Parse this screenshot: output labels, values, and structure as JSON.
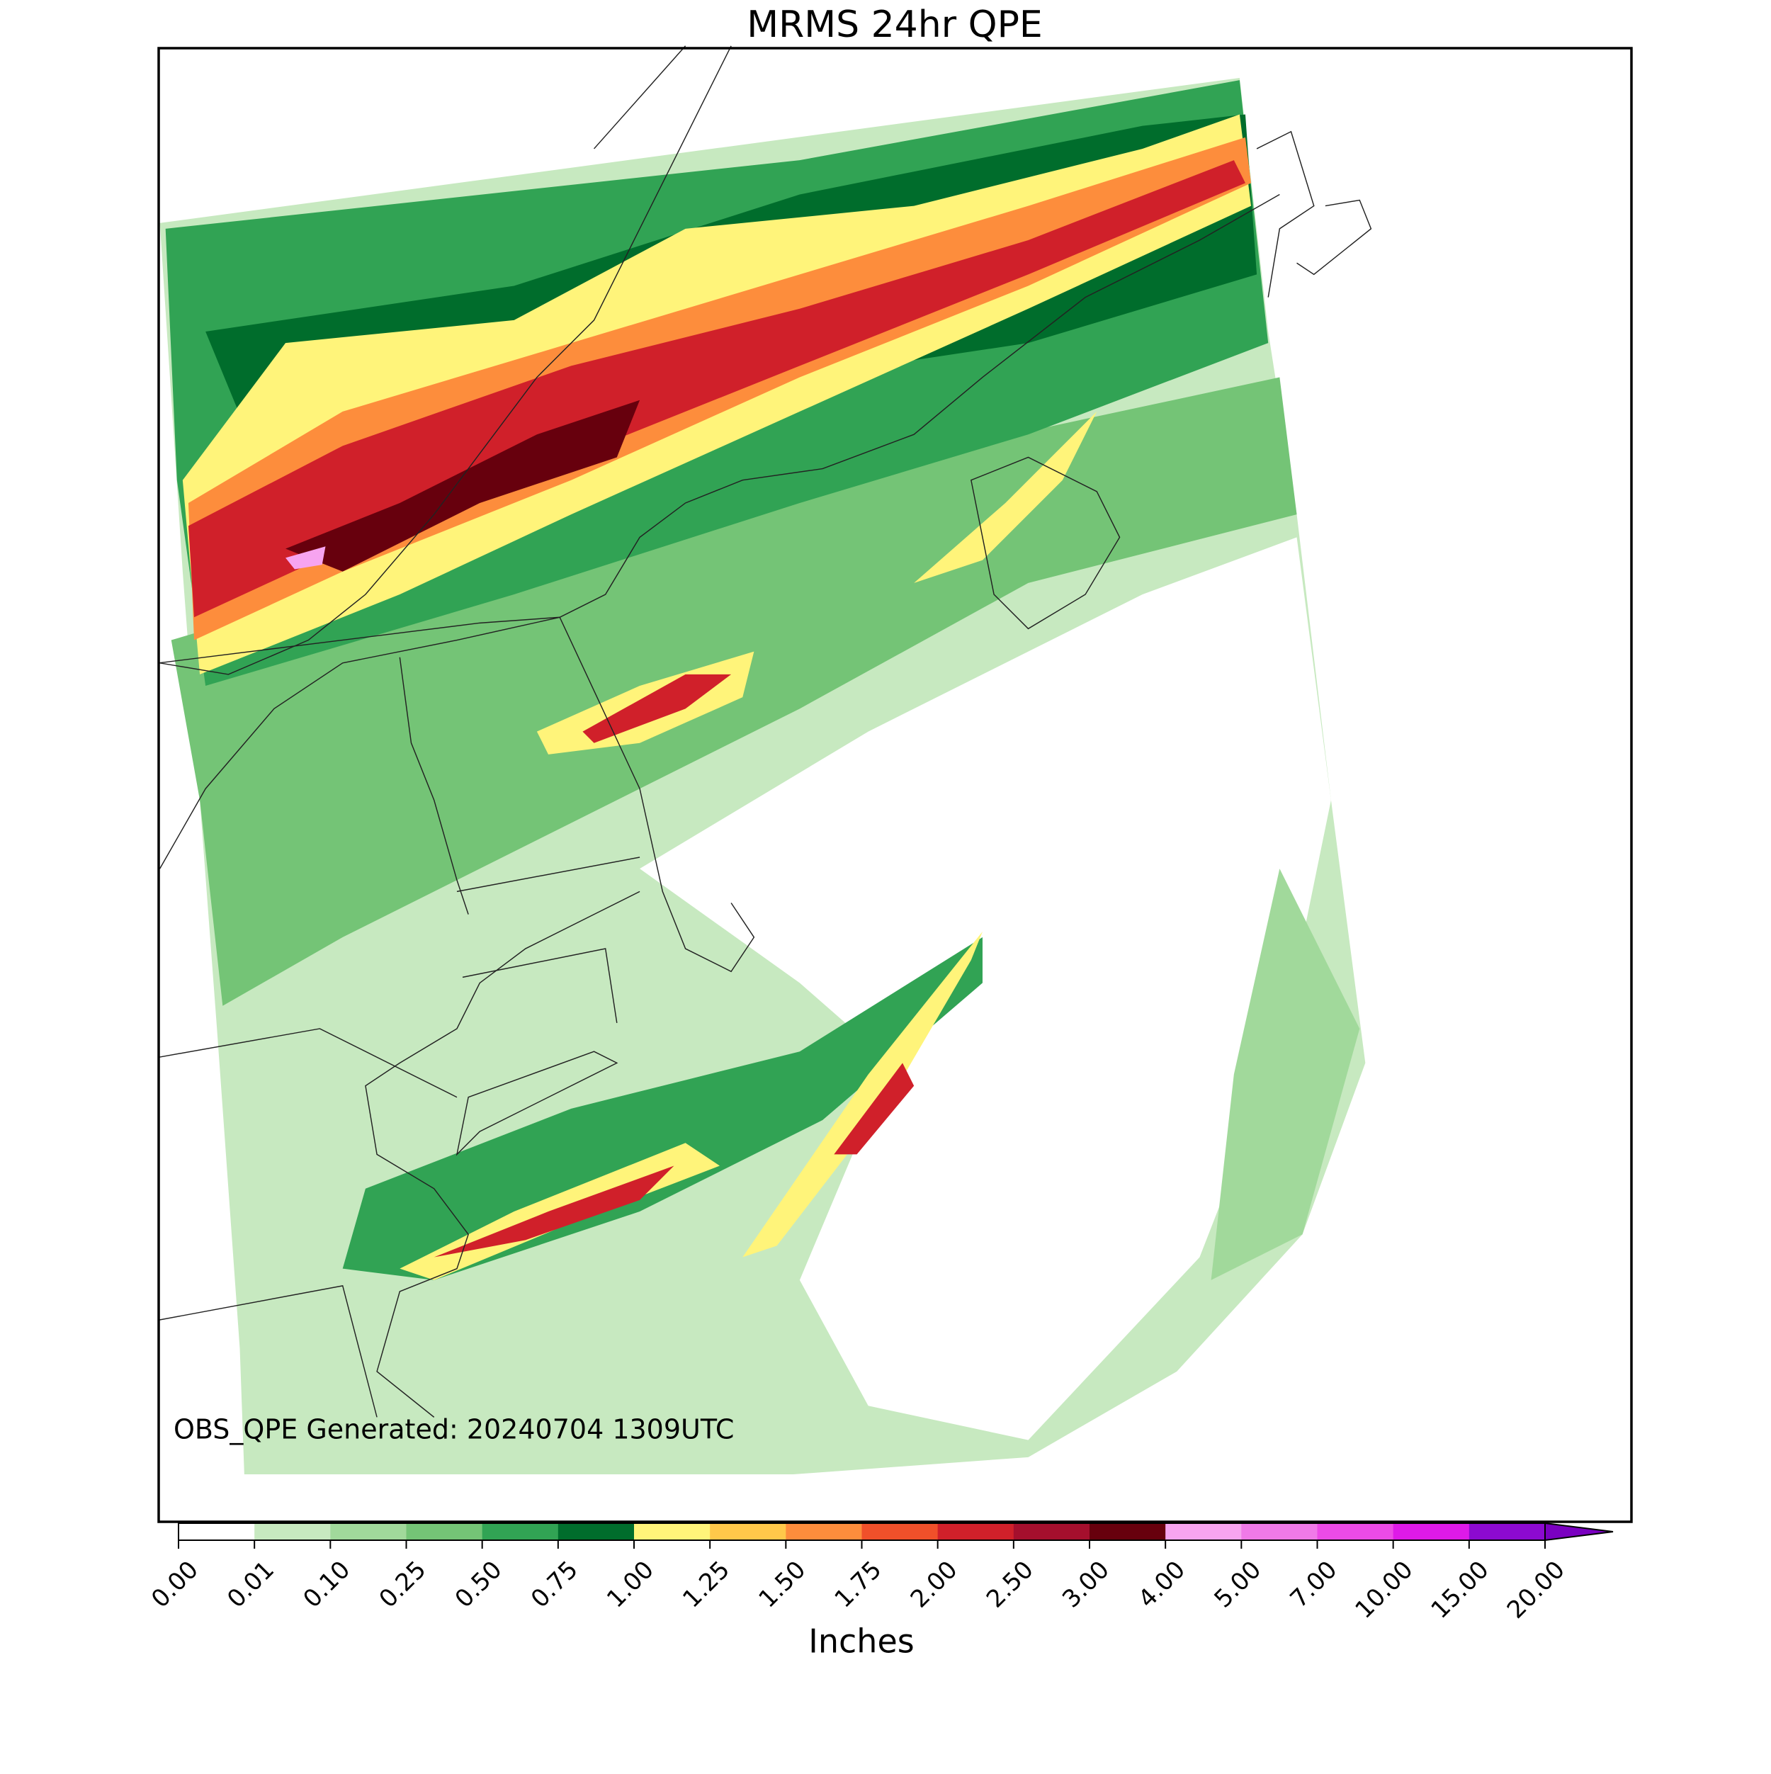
{
  "title": "MRMS 24hr QPE",
  "annotation": "OBS_QPE Generated: 20240704 1309UTC",
  "colorbar": {
    "label": "Inches",
    "ticks": [
      {
        "value": 0,
        "label": "0.00"
      },
      {
        "value": 0.01,
        "label": "0.01"
      },
      {
        "value": 0.1,
        "label": "0.10"
      },
      {
        "value": 0.25,
        "label": "0.25"
      },
      {
        "value": 0.5,
        "label": "0.50"
      },
      {
        "value": 0.75,
        "label": "0.75"
      },
      {
        "value": 1,
        "label": "1.00"
      },
      {
        "value": 1.25,
        "label": "1.25"
      },
      {
        "value": 1.5,
        "label": "1.50"
      },
      {
        "value": 1.75,
        "label": "1.75"
      },
      {
        "value": 2,
        "label": "2.00"
      },
      {
        "value": 2.5,
        "label": "2.50"
      },
      {
        "value": 3,
        "label": "3.00"
      },
      {
        "value": 4,
        "label": "4.00"
      },
      {
        "value": 5,
        "label": "5.00"
      },
      {
        "value": 7,
        "label": "7.00"
      },
      {
        "value": 10,
        "label": "10.00"
      },
      {
        "value": 15,
        "label": "15.00"
      },
      {
        "value": 20,
        "label": "20.00"
      }
    ],
    "colors": [
      "#ffffff",
      "#c7e9c0",
      "#a1d99b",
      "#74c476",
      "#31a354",
      "#006d2c",
      "#fff47a",
      "#ffc84a",
      "#fd8d3c",
      "#f0502a",
      "#d0202a",
      "#a50f2d",
      "#67000d",
      "#f7a4f0",
      "#f07ae8",
      "#ec4be6",
      "#de1ae8",
      "#8c0ad0"
    ],
    "extend_color": "#7a00c0"
  }
}
